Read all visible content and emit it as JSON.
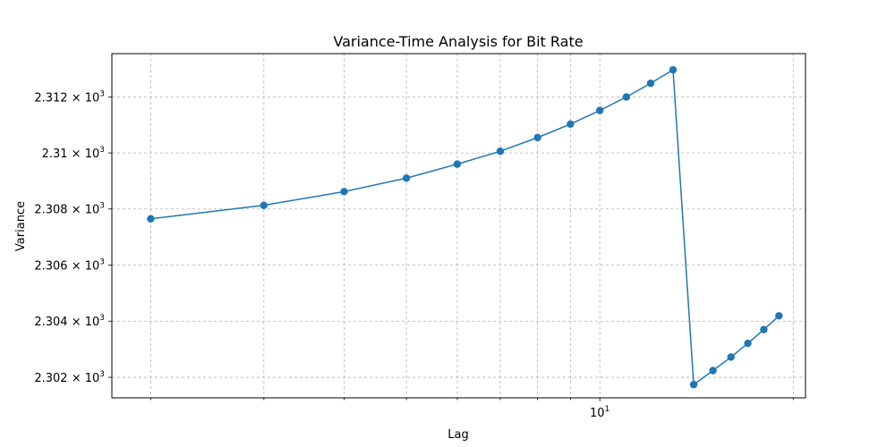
{
  "chart_data": {
    "type": "line",
    "title": "Variance-Time Analysis for Bit Rate",
    "xlabel": "Lag",
    "ylabel": "Variance",
    "x_scale": "log",
    "y_scale": "log",
    "xlim": [
      1.74,
      20.9
    ],
    "ylim": [
      2301.27,
      2313.55
    ],
    "grid": true,
    "color": "#1f77b4",
    "x_tick_labels": [
      {
        "value": 10,
        "base": "10",
        "exp": "1"
      }
    ],
    "x_minor_ticks": [
      2,
      3,
      4,
      5,
      6,
      7,
      8,
      9,
      20
    ],
    "y_tick_labels": [
      {
        "value": 2302,
        "mantissa": "2.302",
        "base": "10",
        "exp": "3"
      },
      {
        "value": 2304,
        "mantissa": "2.304",
        "base": "10",
        "exp": "3"
      },
      {
        "value": 2306,
        "mantissa": "2.306",
        "base": "10",
        "exp": "3"
      },
      {
        "value": 2308,
        "mantissa": "2.308",
        "base": "10",
        "exp": "3"
      },
      {
        "value": 2310,
        "mantissa": "2.31",
        "base": "10",
        "exp": "3"
      },
      {
        "value": 2312,
        "mantissa": "2.312",
        "base": "10",
        "exp": "3"
      }
    ],
    "series": [
      {
        "x": [
          2,
          3,
          4,
          5,
          6,
          7,
          8,
          9,
          10,
          11,
          12,
          13,
          14,
          15,
          16,
          17,
          18,
          19
        ],
        "y": [
          2307.65,
          2308.13,
          2308.62,
          2309.1,
          2309.6,
          2310.06,
          2310.55,
          2311.03,
          2311.52,
          2312.0,
          2312.49,
          2312.97,
          2301.74,
          2302.24,
          2302.72,
          2303.21,
          2303.7,
          2304.19
        ]
      }
    ]
  }
}
